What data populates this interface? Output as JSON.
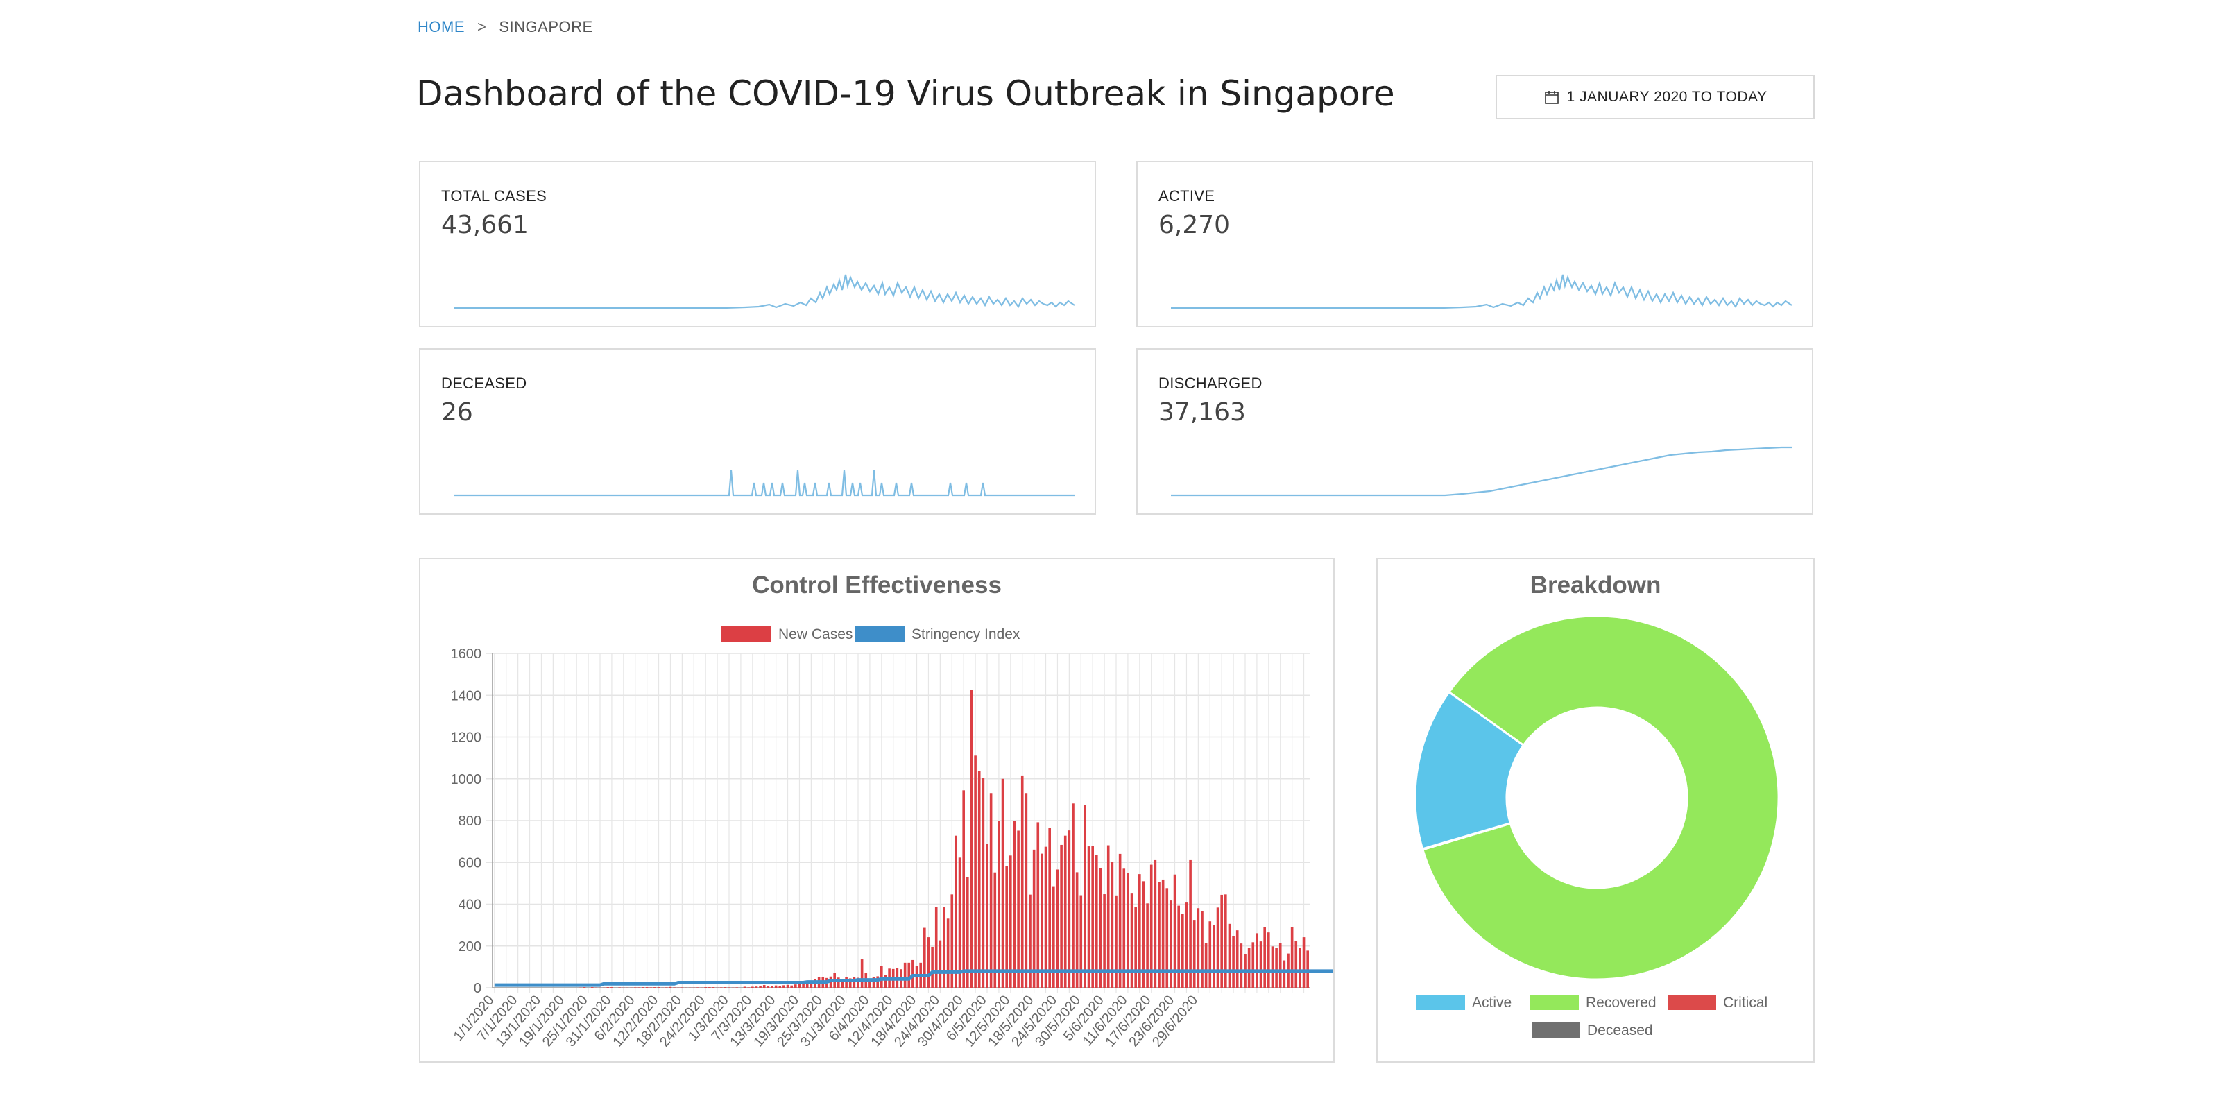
{
  "breadcrumb": {
    "home": "HOME",
    "separator": ">",
    "current": "SINGAPORE"
  },
  "page": {
    "title": "Dashboard of the COVID-19 Virus Outbreak in Singapore"
  },
  "date_filter": {
    "label": "1 JANUARY 2020 TO TODAY",
    "icon": "calendar-icon"
  },
  "stats": {
    "total_cases": {
      "label": "TOTAL CASES",
      "value": "43,661"
    },
    "active": {
      "label": "ACTIVE",
      "value": "6,270"
    },
    "deceased": {
      "label": "DECEASED",
      "value": "26"
    },
    "discharged": {
      "label": "DISCHARGED",
      "value": "37,163"
    }
  },
  "colors": {
    "link": "#2f86c8",
    "sparkline": "#7fbde3",
    "new_cases": "#dc3f44",
    "stringency": "#3e8ec9",
    "active": "#5bc5ea",
    "recovered": "#94e85b",
    "critical": "#dc4a4a",
    "deceased": "#707070"
  },
  "chart_data": [
    {
      "type": "bar",
      "title": "Control Effectiveness",
      "legend_position": "top",
      "grid": true,
      "ylim": [
        0,
        1600
      ],
      "yticks": [
        0,
        200,
        400,
        600,
        800,
        1000,
        1200,
        1400,
        1600
      ],
      "x_tick_labels": [
        "1/1/2020",
        "7/1/2020",
        "13/1/2020",
        "19/1/2020",
        "25/1/2020",
        "31/1/2020",
        "6/2/2020",
        "12/2/2020",
        "18/2/2020",
        "24/2/2020",
        "1/3/2020",
        "7/3/2020",
        "13/3/2020",
        "19/3/2020",
        "25/3/2020",
        "31/3/2020",
        "6/4/2020",
        "12/4/2020",
        "18/4/2020",
        "24/4/2020",
        "30/4/2020",
        "6/5/2020",
        "12/5/2020",
        "18/5/2020",
        "24/5/2020",
        "30/5/2020",
        "5/6/2020",
        "11/6/2020",
        "17/6/2020",
        "23/6/2020",
        "29/6/2020"
      ],
      "series": [
        {
          "name": "New Cases",
          "color": "#dc3f44",
          "start_date": "1/1/2020",
          "values": [
            0,
            0,
            0,
            0,
            0,
            0,
            0,
            0,
            0,
            0,
            0,
            0,
            0,
            0,
            0,
            0,
            0,
            0,
            0,
            0,
            0,
            0,
            1,
            3,
            0,
            3,
            1,
            1,
            1,
            3,
            3,
            0,
            2,
            1,
            1,
            1,
            2,
            2,
            3,
            3,
            2,
            3,
            3,
            1,
            2,
            4,
            2,
            1,
            2,
            1,
            1,
            1,
            2,
            1,
            3,
            3,
            3,
            1,
            2,
            3,
            2,
            1,
            2,
            0,
            5,
            2,
            5,
            6,
            10,
            13,
            9,
            7,
            11,
            7,
            12,
            14,
            11,
            16,
            17,
            25,
            23,
            32,
            40,
            53,
            51,
            47,
            54,
            73,
            49,
            35,
            52,
            45,
            50,
            48,
            136,
            73,
            41,
            50,
            55,
            105,
            62,
            92,
            90,
            95,
            89,
            120,
            120,
            133,
            106,
            120,
            287,
            242,
            196,
            386,
            227,
            385,
            331,
            447,
            728,
            623,
            945,
            529,
            1426,
            1111,
            1037,
            1004,
            690,
            932,
            552,
            799,
            1000,
            584,
            633,
            799,
            752,
            1016,
            932,
            446,
            661,
            792,
            642,
            675,
            764,
            486,
            566,
            684,
            728,
            753,
            882,
            553,
            443,
            875,
            677,
            680,
            636,
            573,
            448,
            682,
            603,
            442,
            641,
            570,
            548,
            451,
            387,
            544,
            510,
            404,
            589,
            611,
            506,
            518,
            477,
            418,
            542,
            393,
            354,
            408,
            611,
            325,
            381,
            368,
            214,
            318,
            302,
            384,
            445,
            447,
            306,
            248,
            275,
            212,
            161,
            191,
            218,
            261,
            222,
            291,
            265,
            198,
            191,
            213,
            131,
            164,
            289,
            225,
            192,
            242,
            178
          ]
        },
        {
          "name": "Stringency Index",
          "color": "#3e8ec9",
          "start_date": "1/1/2020",
          "values": [
            13,
            13,
            13,
            13,
            13,
            13,
            13,
            13,
            13,
            13,
            13,
            13,
            13,
            13,
            13,
            13,
            13,
            13,
            13,
            13,
            13,
            13,
            13,
            13,
            13,
            13,
            13,
            13,
            19,
            19,
            19,
            19,
            19,
            19,
            19,
            19,
            19,
            19,
            19,
            19,
            19,
            19,
            19,
            19,
            19,
            19,
            19,
            25,
            25,
            25,
            25,
            25,
            25,
            25,
            25,
            25,
            25,
            25,
            25,
            25,
            25,
            25,
            25,
            25,
            25,
            25,
            25,
            25,
            25,
            25,
            25,
            25,
            25,
            25,
            25,
            25,
            25,
            25,
            25,
            25,
            28,
            28,
            28,
            28,
            28,
            28,
            35,
            35,
            35,
            35,
            35,
            35,
            35,
            38,
            38,
            38,
            38,
            38,
            38,
            42,
            42,
            42,
            42,
            42,
            42,
            42,
            42,
            58,
            58,
            58,
            58,
            58,
            75,
            75,
            75,
            75,
            75,
            75,
            75,
            75,
            80,
            80,
            80,
            80,
            80,
            80,
            80,
            80,
            80,
            80,
            80,
            80,
            80,
            80,
            80,
            80,
            80,
            80,
            80,
            80,
            80,
            80,
            80,
            80,
            80,
            80,
            80,
            80,
            80,
            80,
            80,
            80,
            80,
            80,
            80,
            80,
            80,
            80,
            80,
            80,
            80,
            80,
            80,
            80,
            80,
            80,
            80,
            80,
            80,
            80,
            80,
            80,
            80,
            80,
            80,
            80,
            80,
            80,
            80,
            80,
            80,
            80,
            80,
            80,
            80,
            80,
            80,
            80,
            80,
            80,
            80,
            80,
            80,
            80,
            80,
            80,
            80,
            80,
            80,
            80,
            80,
            80,
            80,
            80,
            80,
            80,
            80,
            80,
            80,
            80,
            80,
            80,
            80,
            80,
            80,
            80,
            80,
            80
          ]
        }
      ]
    },
    {
      "type": "pie",
      "subtype": "doughnut",
      "title": "Breakdown",
      "legend_position": "bottom",
      "categories": [
        "Active",
        "Recovered",
        "Critical",
        "Deceased"
      ],
      "values": [
        6270,
        37163,
        1,
        26
      ],
      "colors": [
        "#5bc5ea",
        "#94e85b",
        "#dc4a4a",
        "#707070"
      ]
    }
  ]
}
